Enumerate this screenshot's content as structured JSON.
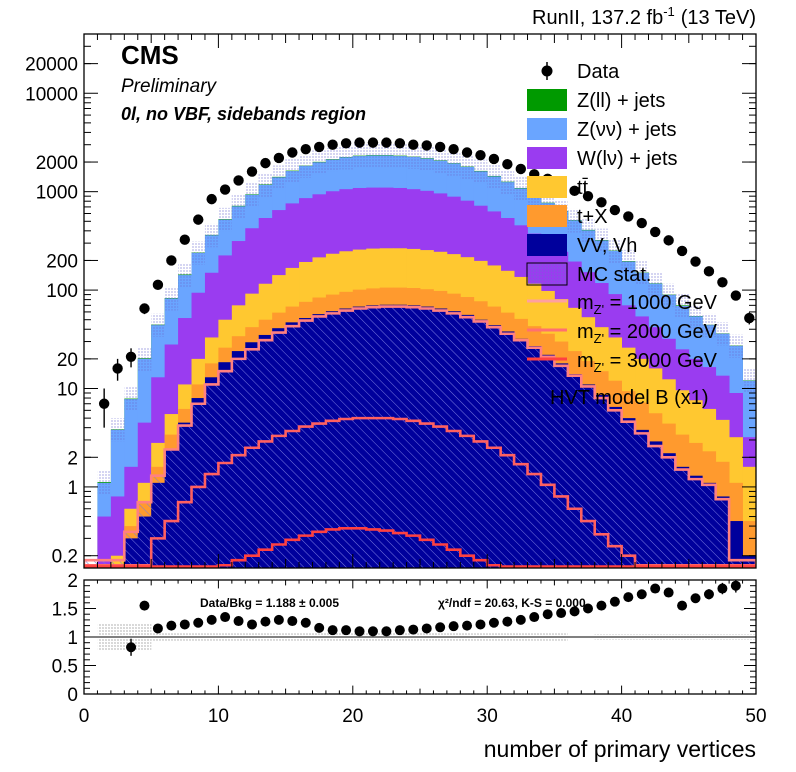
{
  "header": {
    "lumi_text": "RunII, 137.2 fb",
    "lumi_sup": "-1",
    "energy_text": "(13 TeV)",
    "cms_label": "CMS",
    "preliminary_label": "Preliminary",
    "region_label": "0l, no VBF, sidebands region"
  },
  "colors": {
    "zll": "#009a00",
    "znn": "#6aa5ff",
    "wlnu": "#9a3cf0",
    "ttbar": "#ffc830",
    "tx": "#ff9a2e",
    "vv": "#00009c",
    "signal": "#ff5a5a"
  },
  "chart_data": [
    {
      "type": "area",
      "panel": "main",
      "xlabel": "number of primary vertices",
      "ylabel": "",
      "xlim": [
        0,
        50
      ],
      "ylim": [
        0.15,
        40000
      ],
      "log_y": true,
      "stacked": true,
      "bin_width": 1,
      "ytick_labels": [
        "0.2",
        "1",
        "2",
        "10",
        "20",
        "100",
        "200",
        "1000",
        "2000",
        "10000",
        "20000"
      ],
      "xtick_labels": [
        "0",
        "10",
        "20",
        "30",
        "40",
        "50"
      ],
      "grid": false,
      "legend_position": "top-right",
      "legend": {
        "data": "Data",
        "zll": "Z(ll) + jets",
        "znn": "Z(νν) + jets",
        "wlnu": "W(lν) + jets",
        "ttbar": "tt̄",
        "tx": "t+X",
        "vv": "VV, Vh",
        "mcstat": "MC stat.",
        "sig1": "m_Z' = 1000 GeV",
        "sig2": "m_Z' = 2000 GeV",
        "sig3": "m_Z' = 3000 GeV",
        "model": "HVT model B (x1)"
      },
      "stack_totals": {
        "vv": [
          0.1,
          0.1,
          0.1,
          0.3,
          0.5,
          1.1,
          2.4,
          4.5,
          8,
          13,
          18.5,
          24,
          29.5,
          35,
          41,
          47,
          52,
          57,
          61,
          65,
          68,
          70,
          71,
          71,
          70,
          68,
          65,
          61,
          56,
          50,
          44,
          38,
          32,
          27,
          22,
          18,
          14,
          11,
          8.6,
          6.5,
          5,
          3.8,
          2.9,
          2.2,
          1.6,
          1.3,
          1.1,
          0.8,
          0.45,
          0.2
        ],
        "tx": [
          0.1,
          0.1,
          0.1,
          0.4,
          0.7,
          1.6,
          3.4,
          6.2,
          11,
          18,
          26,
          34,
          42,
          50,
          59,
          68,
          76,
          84,
          90,
          96,
          101,
          104,
          106,
          106,
          105,
          102,
          98,
          92,
          85,
          77,
          68,
          59,
          51,
          43,
          36,
          30,
          24,
          19,
          15,
          12,
          9.4,
          7.2,
          5.6,
          4.4,
          3.4,
          2.8,
          2.3,
          1.8,
          1.1,
          0.45
        ],
        "ttbar": [
          0.1,
          0.1,
          0.2,
          0.6,
          1.1,
          2.8,
          5.5,
          11,
          20,
          33,
          50,
          70,
          92,
          116,
          142,
          168,
          193,
          215,
          234,
          248,
          258,
          264,
          266,
          266,
          262,
          255,
          245,
          232,
          216,
          198,
          178,
          157,
          136,
          116,
          98,
          81,
          66,
          53,
          42,
          33,
          26,
          20,
          16,
          12.4,
          9.6,
          7.6,
          6.2,
          4.8,
          3.2,
          1.6
        ],
        "wlnu": [
          0.1,
          0.5,
          0.8,
          1.6,
          4.5,
          13,
          28,
          52,
          94,
          150,
          225,
          315,
          425,
          540,
          650,
          760,
          860,
          940,
          1010,
          1060,
          1090,
          1100,
          1100,
          1090,
          1060,
          1020,
          960,
          890,
          810,
          720,
          630,
          540,
          455,
          375,
          305,
          245,
          195,
          152,
          118,
          91,
          70,
          54,
          42,
          32,
          25,
          20,
          16.5,
          13.5,
          9,
          3.2
        ],
        "znn": [
          0.1,
          1.1,
          3.8,
          7.8,
          20,
          44,
          82,
          142,
          238,
          360,
          520,
          710,
          930,
          1170,
          1400,
          1620,
          1820,
          1990,
          2120,
          2230,
          2300,
          2330,
          2330,
          2300,
          2250,
          2170,
          2060,
          1930,
          1780,
          1610,
          1430,
          1250,
          1080,
          915,
          765,
          630,
          510,
          405,
          320,
          250,
          195,
          150,
          116,
          89,
          69,
          54,
          44,
          36,
          27,
          12
        ],
        "zll": [
          0.1,
          1.12,
          3.85,
          7.9,
          20.3,
          44.6,
          83,
          144,
          241,
          364,
          526,
          718,
          940,
          1183,
          1415,
          1637,
          1839,
          2010,
          2141,
          2252,
          2323,
          2353,
          2353,
          2323,
          2272,
          2191,
          2080,
          1949,
          1797,
          1626,
          1444,
          1262,
          1090,
          924,
          772,
          636,
          515,
          409,
          323,
          252,
          197,
          151,
          117,
          90,
          70,
          54.5,
          44.4,
          36.3,
          27.3,
          12.1
        ]
      },
      "data_points": {
        "x": [
          1.5,
          2.5,
          3.5,
          4.5,
          5.5,
          6.5,
          7.5,
          8.5,
          9.5,
          10.5,
          11.5,
          12.5,
          13.5,
          14.5,
          15.5,
          16.5,
          17.5,
          18.5,
          19.5,
          20.5,
          21.5,
          22.5,
          23.5,
          24.5,
          25.5,
          26.5,
          27.5,
          28.5,
          29.5,
          30.5,
          31.5,
          32.5,
          33.5,
          34.5,
          35.5,
          36.5,
          37.5,
          38.5,
          39.5,
          40.5,
          41.5,
          42.5,
          43.5,
          44.5,
          45.5,
          46.5,
          47.5,
          48.5,
          49.5
        ],
        "y": [
          7,
          16,
          21,
          65,
          113,
          200,
          325,
          520,
          840,
          1050,
          1300,
          1600,
          1950,
          2200,
          2500,
          2700,
          2850,
          3000,
          3100,
          3150,
          3150,
          3150,
          3100,
          3000,
          2950,
          2850,
          2700,
          2500,
          2350,
          2150,
          1900,
          1700,
          1500,
          1350,
          1200,
          1020,
          900,
          780,
          650,
          560,
          480,
          390,
          320,
          250,
          195,
          155,
          120,
          88,
          52
        ],
        "yerr": [
          3,
          4,
          4.6,
          8,
          10.6,
          14,
          18,
          23,
          29,
          32,
          36,
          40,
          44,
          47,
          50,
          52,
          53,
          55,
          56,
          56,
          56,
          56,
          56,
          55,
          54,
          53,
          52,
          50,
          48,
          46,
          44,
          41,
          39,
          37,
          35,
          32,
          30,
          28,
          25,
          24,
          22,
          20,
          18,
          16,
          14,
          12.5,
          11,
          9.4,
          7.2
        ]
      },
      "signals": {
        "sig1": [
          0.18,
          0.18,
          0.18,
          0.35,
          0.7,
          1.3,
          2.4,
          4.2,
          7,
          11,
          15,
          20,
          25,
          31,
          37,
          43,
          49,
          54,
          58,
          62,
          65,
          67,
          68,
          68,
          67,
          65,
          62,
          58,
          53,
          48,
          42,
          36,
          31,
          26,
          21,
          17,
          13.5,
          10.5,
          8,
          6,
          4.6,
          3.5,
          2.6,
          2,
          1.5,
          1.2,
          1.05,
          0.75,
          0.18,
          0.18
        ],
        "sig2": [
          0.16,
          0.16,
          0.16,
          0.16,
          0.16,
          0.3,
          0.45,
          0.7,
          1,
          1.35,
          1.75,
          2.1,
          2.5,
          2.9,
          3.3,
          3.7,
          4.1,
          4.4,
          4.7,
          4.9,
          5,
          5,
          5,
          4.9,
          4.7,
          4.4,
          4.1,
          3.7,
          3.3,
          2.9,
          2.5,
          2.1,
          1.7,
          1.35,
          1.05,
          0.8,
          0.6,
          0.45,
          0.33,
          0.25,
          0.2,
          0.16,
          0.16,
          0.16,
          0.16,
          0.16,
          0.16,
          0.16,
          0.16,
          0.16
        ],
        "sig3": [
          0.155,
          0.155,
          0.155,
          0.155,
          0.155,
          0.155,
          0.155,
          0.155,
          0.155,
          0.155,
          0.16,
          0.18,
          0.2,
          0.23,
          0.26,
          0.29,
          0.32,
          0.35,
          0.37,
          0.38,
          0.38,
          0.37,
          0.36,
          0.34,
          0.32,
          0.29,
          0.26,
          0.23,
          0.2,
          0.18,
          0.16,
          0.155,
          0.155,
          0.155,
          0.155,
          0.155,
          0.155,
          0.155,
          0.155,
          0.155,
          0.155,
          0.155,
          0.155,
          0.155,
          0.155,
          0.155,
          0.155,
          0.155,
          0.155,
          0.155
        ]
      }
    },
    {
      "type": "scatter",
      "panel": "ratio",
      "xlim": [
        0,
        50
      ],
      "ylim": [
        0,
        2
      ],
      "ytick_labels": [
        "0",
        "0.5",
        "1",
        "1.5",
        "2"
      ],
      "reference_line": 1,
      "annotation_left": "Data/Bkg = 1.188 ± 0.005",
      "annotation_right": "χ²/ndf = 20.63,   K-S = 0.000",
      "x": [
        3.5,
        4.5,
        5.5,
        6.5,
        7.5,
        8.5,
        9.5,
        10.5,
        11.5,
        12.5,
        13.5,
        14.5,
        15.5,
        16.5,
        17.5,
        18.5,
        19.5,
        20.5,
        21.5,
        22.5,
        23.5,
        24.5,
        25.5,
        26.5,
        27.5,
        28.5,
        29.5,
        30.5,
        31.5,
        32.5,
        33.5,
        34.5,
        35.5,
        36.5,
        37.5,
        38.5,
        39.5,
        40.5,
        41.5,
        42.5,
        43.5,
        44.5,
        45.5,
        46.5,
        47.5
      ],
      "y": [
        0.82,
        1.55,
        1.15,
        1.2,
        1.22,
        1.25,
        1.3,
        1.35,
        1.28,
        1.22,
        1.27,
        1.3,
        1.28,
        1.25,
        1.16,
        1.12,
        1.12,
        1.1,
        1.1,
        1.1,
        1.12,
        1.13,
        1.15,
        1.17,
        1.19,
        1.2,
        1.22,
        1.25,
        1.27,
        1.3,
        1.35,
        1.4,
        1.42,
        1.45,
        1.5,
        1.55,
        1.62,
        1.7,
        1.75,
        1.85,
        1.78,
        1.55,
        1.68,
        1.75,
        1.85
      ],
      "yerr": [
        0.15,
        0.08,
        0.04,
        0.03,
        0.03,
        0.02,
        0.02,
        0.02,
        0.02,
        0.02,
        0.02,
        0.02,
        0.02,
        0.02,
        0.02,
        0.02,
        0.02,
        0.02,
        0.02,
        0.02,
        0.02,
        0.02,
        0.02,
        0.02,
        0.02,
        0.02,
        0.02,
        0.02,
        0.02,
        0.03,
        0.03,
        0.03,
        0.03,
        0.03,
        0.04,
        0.04,
        0.04,
        0.05,
        0.05,
        0.06,
        0.06,
        0.07,
        0.08,
        0.09,
        0.1
      ],
      "extra_points_x": [
        48.5
      ],
      "extra_points_y": [
        1.9
      ],
      "extra_points_yerr": [
        0.12
      ]
    }
  ]
}
